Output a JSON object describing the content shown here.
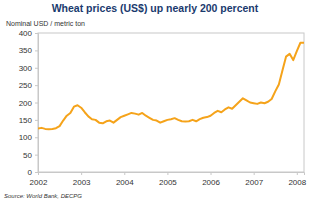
{
  "chart_data": {
    "type": "line",
    "title": "Wheat prices (US$) up nearly 200 percent",
    "subtitle": "Nominal USD / metric ton",
    "source": "Source: World Bank, DECPG",
    "categories": [
      "2002",
      null,
      null,
      null,
      null,
      null,
      null,
      null,
      null,
      null,
      null,
      null,
      "2003",
      null,
      null,
      null,
      null,
      null,
      null,
      null,
      null,
      null,
      null,
      null,
      "2004",
      null,
      null,
      null,
      null,
      null,
      null,
      null,
      null,
      null,
      null,
      null,
      "2005",
      null,
      null,
      null,
      null,
      null,
      null,
      null,
      null,
      null,
      null,
      null,
      "2006",
      null,
      null,
      null,
      null,
      null,
      null,
      null,
      null,
      null,
      null,
      null,
      "2007",
      null,
      null,
      null,
      null,
      null,
      null,
      null,
      null,
      null,
      null,
      null,
      "2008",
      null,
      null
    ],
    "values": [
      125,
      127,
      124,
      123,
      124,
      126,
      132,
      148,
      162,
      170,
      188,
      192,
      185,
      172,
      160,
      152,
      150,
      142,
      140,
      146,
      148,
      142,
      150,
      158,
      162,
      166,
      170,
      168,
      165,
      170,
      162,
      156,
      150,
      148,
      142,
      146,
      150,
      152,
      155,
      150,
      146,
      145,
      146,
      150,
      146,
      152,
      156,
      158,
      162,
      170,
      176,
      172,
      180,
      186,
      182,
      192,
      202,
      212,
      206,
      200,
      198,
      196,
      200,
      198,
      202,
      210,
      232,
      252,
      292,
      332,
      340,
      322,
      348,
      372,
      372
    ],
    "color": "#f5a31a",
    "ylim": [
      0,
      400
    ],
    "yticks": [
      0,
      50,
      100,
      150,
      200,
      250,
      300,
      350,
      400
    ],
    "grid": false
  }
}
